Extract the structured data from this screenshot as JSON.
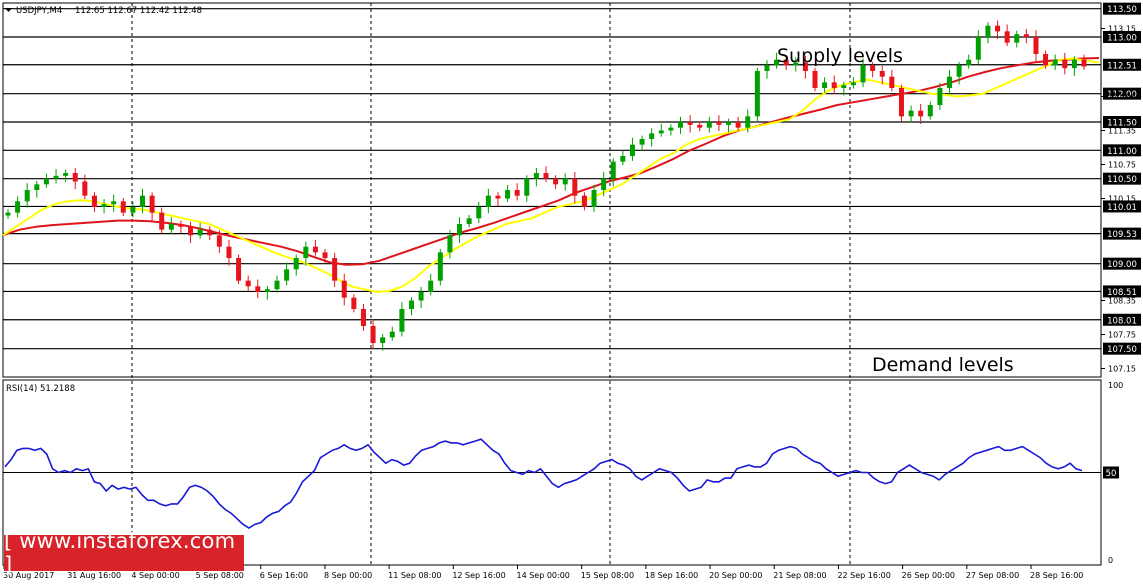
{
  "header": {
    "symbol": "USDJPY,M4",
    "ohlc": "112.65 112.67 112.42 112.48"
  },
  "annotations": {
    "supply": "Supply levels",
    "demand": "Demand levels"
  },
  "watermark": {
    "text": "[ www.instaforex.com ]"
  },
  "colors": {
    "bull_candle": "#00a000",
    "bear_candle": "#e8141b",
    "ma_fast": "#ffff00",
    "ma_slow": "#e0141b",
    "rsi": "#1a1ad6",
    "level_line": "#000000",
    "watermark_bg": "#d8232a"
  },
  "chart_data": [
    {
      "type": "candlestick",
      "title": "USDJPY,M4",
      "ylim": [
        107.0,
        113.6
      ],
      "price_axis_ticks": [
        "113.50",
        "113.15",
        "113.00",
        "112.51",
        "112.00",
        "111.95",
        "111.50",
        "111.35",
        "111.00",
        "110.75",
        "110.50",
        "110.15",
        "110.01",
        "109.53",
        "109.00",
        "108.51",
        "108.35",
        "108.01",
        "107.75",
        "107.50",
        "107.15"
      ],
      "level_labels": [
        "113.50",
        "113.00",
        "112.51",
        "112.00",
        "111.50",
        "111.00",
        "110.50",
        "110.01",
        "109.53",
        "109.00",
        "108.51",
        "108.01",
        "107.50"
      ],
      "horizontal_levels": [
        113.5,
        113.0,
        112.51,
        112.0,
        111.5,
        111.0,
        110.5,
        110.01,
        109.53,
        109.0,
        108.51,
        108.01,
        107.5
      ],
      "x_labels": [
        "30 Aug 2017",
        "31 Aug 16:00",
        "4 Sep 00:00",
        "5 Sep 08:00",
        "6 Sep 16:00",
        "8 Sep 00:00",
        "11 Sep 08:00",
        "12 Sep 16:00",
        "14 Sep 00:00",
        "15 Sep 08:00",
        "18 Sep 16:00",
        "20 Sep 00:00",
        "21 Sep 08:00",
        "22 Sep 16:00",
        "26 Sep 00:00",
        "27 Sep 08:00",
        "28 Sep 16:00"
      ],
      "close_path": [
        109.9,
        110.1,
        110.3,
        110.4,
        110.5,
        110.55,
        110.6,
        110.45,
        110.2,
        110.0,
        110.05,
        110.1,
        109.9,
        110.0,
        110.2,
        109.9,
        109.6,
        109.7,
        109.65,
        109.5,
        109.6,
        109.5,
        109.3,
        109.1,
        108.7,
        108.6,
        108.5,
        108.55,
        108.7,
        108.9,
        109.1,
        109.3,
        109.2,
        109.1,
        108.7,
        108.4,
        108.2,
        107.9,
        107.6,
        107.7,
        107.8,
        108.2,
        108.35,
        108.5,
        108.7,
        109.2,
        109.5,
        109.7,
        109.8,
        110.0,
        110.2,
        110.15,
        110.3,
        110.2,
        110.5,
        110.6,
        110.5,
        110.4,
        110.5,
        110.2,
        110.0,
        110.3,
        110.5,
        110.8,
        110.9,
        111.1,
        111.2,
        111.3,
        111.35,
        111.4,
        111.5,
        111.45,
        111.4,
        111.5,
        111.45,
        111.5,
        111.4,
        111.6,
        112.4,
        112.5,
        112.6,
        112.5,
        112.55,
        112.4,
        112.1,
        112.2,
        112.1,
        112.15,
        112.2,
        112.5,
        112.4,
        112.3,
        112.1,
        111.6,
        111.7,
        111.6,
        111.8,
        112.1,
        112.3,
        112.5,
        112.6,
        113.0,
        113.2,
        113.1,
        112.9,
        113.05,
        113.0,
        112.7,
        112.5,
        112.6,
        112.45,
        112.6,
        112.48
      ],
      "ma_fast": [
        109.5,
        109.65,
        109.8,
        109.95,
        110.05,
        110.1,
        110.12,
        110.1,
        110.05,
        110.0,
        109.97,
        109.95,
        109.9,
        109.85,
        109.8,
        109.75,
        109.7,
        109.6,
        109.5,
        109.4,
        109.3,
        109.2,
        109.12,
        109.05,
        108.95,
        108.85,
        108.72,
        108.6,
        108.55,
        108.5,
        108.52,
        108.6,
        108.75,
        108.95,
        109.1,
        109.25,
        109.38,
        109.5,
        109.6,
        109.7,
        109.75,
        109.8,
        109.9,
        110.0,
        110.05,
        110.1,
        110.2,
        110.3,
        110.4,
        110.55,
        110.7,
        110.85,
        110.95,
        111.1,
        111.2,
        111.25,
        111.3,
        111.35,
        111.4,
        111.45,
        111.5,
        111.55,
        111.7,
        111.9,
        112.05,
        112.15,
        112.2,
        112.25,
        112.2,
        112.15,
        112.1,
        112.05,
        112.0,
        111.98,
        111.95,
        111.97,
        112.0,
        112.1,
        112.2,
        112.3,
        112.4,
        112.5,
        112.6,
        112.62,
        112.58,
        112.55
      ],
      "ma_slow": [
        109.5,
        109.6,
        109.65,
        109.68,
        109.7,
        109.72,
        109.74,
        109.76,
        109.76,
        109.75,
        109.72,
        109.68,
        109.62,
        109.55,
        109.48,
        109.42,
        109.36,
        109.3,
        109.22,
        109.12,
        109.02,
        108.98,
        108.99,
        109.05,
        109.15,
        109.25,
        109.35,
        109.45,
        109.55,
        109.63,
        109.72,
        109.82,
        109.92,
        110.02,
        110.12,
        110.25,
        110.35,
        110.45,
        110.52,
        110.6,
        110.72,
        110.85,
        111.0,
        111.12,
        111.25,
        111.35,
        111.42,
        111.5,
        111.58,
        111.65,
        111.72,
        111.8,
        111.85,
        111.9,
        111.95,
        112.0,
        112.05,
        112.12,
        112.2,
        112.3,
        112.38,
        112.45,
        112.5,
        112.55,
        112.58,
        112.6,
        112.62,
        112.63
      ]
    },
    {
      "type": "line",
      "title": "RSI(14) 51.2188",
      "ylim": [
        0,
        100
      ],
      "y_ticks": [
        "100",
        "50",
        "0"
      ],
      "reference_level": 50,
      "series": [
        {
          "name": "RSI(14)",
          "values": [
            53,
            57,
            62,
            63,
            63,
            62,
            63,
            60,
            52,
            50,
            51,
            50,
            52,
            51,
            52,
            45,
            44,
            40,
            43,
            41,
            42,
            41,
            42,
            38,
            35,
            35,
            33,
            32,
            33,
            33,
            37,
            42,
            43,
            42,
            40,
            37,
            33,
            30,
            28,
            25,
            22,
            20,
            22,
            23,
            26,
            28,
            29,
            32,
            34,
            39,
            45,
            48,
            51,
            58,
            60,
            62,
            63,
            65,
            63,
            62,
            63,
            65,
            61,
            58,
            55,
            57,
            56,
            54,
            55,
            59,
            62,
            63,
            64,
            66,
            67,
            66,
            66,
            65,
            66,
            67,
            68,
            65,
            62,
            60,
            55,
            51,
            50,
            49,
            51,
            50,
            52,
            48,
            44,
            42,
            44,
            45,
            46,
            48,
            50,
            52,
            55,
            56,
            57,
            55,
            54,
            52,
            48,
            46,
            48,
            50,
            52,
            51,
            50,
            47,
            43,
            40,
            41,
            42,
            46,
            45,
            45,
            47,
            47,
            52,
            53,
            54,
            53,
            53,
            55,
            60,
            62,
            63,
            64,
            63,
            60,
            58,
            56,
            55,
            52,
            50,
            48,
            49,
            50,
            51,
            50,
            50,
            47,
            45,
            44,
            45,
            50,
            52,
            54,
            52,
            50,
            49,
            48,
            46,
            49,
            51,
            53,
            55,
            58,
            60,
            61,
            62,
            63,
            64,
            62,
            62,
            63,
            64,
            62,
            60,
            58,
            55,
            53,
            52,
            53,
            55,
            52,
            51
          ]
        }
      ]
    }
  ]
}
